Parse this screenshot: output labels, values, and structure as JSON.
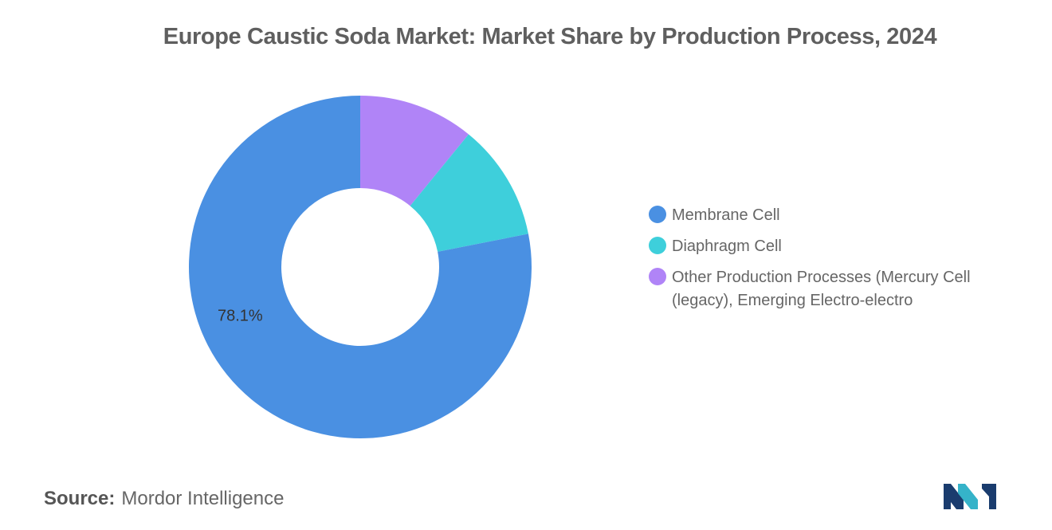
{
  "title": "Europe Caustic Soda Market: Market Share by Production Process, 2024",
  "chart_data": {
    "type": "pie",
    "donut": true,
    "title": "Europe Caustic Soda Market: Market Share by Production Process, 2024",
    "categories": [
      "Membrane Cell",
      "Diaphragm Cell",
      "Other Production Processes (Mercury Cell (legacy), Emerging Electro-electro"
    ],
    "values": [
      78.1,
      11.0,
      10.9
    ],
    "data_labels": [
      "78.1%",
      "",
      ""
    ],
    "colors": [
      "#4a90e2",
      "#3ecfdb",
      "#b084f7"
    ],
    "legend_position": "right"
  },
  "legend": {
    "items": [
      {
        "label": "Membrane Cell",
        "color": "#4a90e2"
      },
      {
        "label": "Diaphragm Cell",
        "color": "#3ecfdb"
      },
      {
        "label": "Other Production Processes (Mercury Cell (legacy), Emerging Electro-electro",
        "color": "#b084f7"
      }
    ]
  },
  "source": {
    "key": "Source:",
    "value": "Mordor Intelligence"
  },
  "logo": {
    "colors": [
      "#1a3c6e",
      "#35b3c9"
    ]
  }
}
